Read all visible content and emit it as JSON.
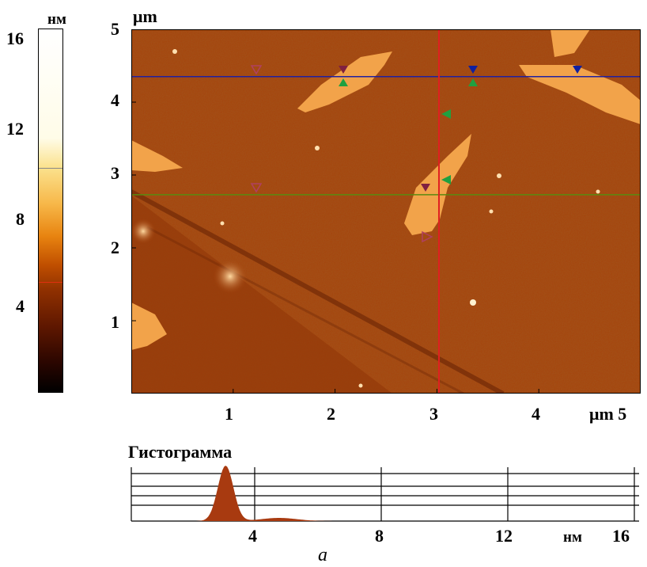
{
  "colorbar": {
    "unit": "нм",
    "ticks": [
      "16",
      "12",
      "8",
      "4"
    ],
    "gradient": [
      "#000000",
      "#5e1700",
      "#c04f00",
      "#f7b84a",
      "#ffffff"
    ],
    "marker_upper_nm": 10,
    "marker_lower_nm": 5
  },
  "afm_image": {
    "y_axis_unit": "μm",
    "y_ticks": [
      "5",
      "4",
      "3",
      "2",
      "1"
    ],
    "x_ticks": [
      "1",
      "2",
      "3",
      "4"
    ],
    "x_axis_label": "μm 5",
    "range_um": [
      0,
      5
    ],
    "base_color": "#a5420b",
    "island_color": "#f2a34a",
    "cursor_colors": {
      "vertical": "#e02020",
      "horizontal_top": "#2020a0",
      "horizontal_bottom": "#5a8a10"
    },
    "cursor_positions_um": {
      "vertical_x": 3.02,
      "horizontal_top_y": 4.35,
      "horizontal_bottom_y": 2.73
    }
  },
  "histogram": {
    "title": "Гистограмма",
    "x_ticks": [
      "4",
      "8",
      "12"
    ],
    "x_unit": "нм",
    "x_end": "16",
    "range_nm": [
      0,
      16
    ],
    "peak_nm": 3.0,
    "fill_color": "#a83a10"
  },
  "caption": "a"
}
